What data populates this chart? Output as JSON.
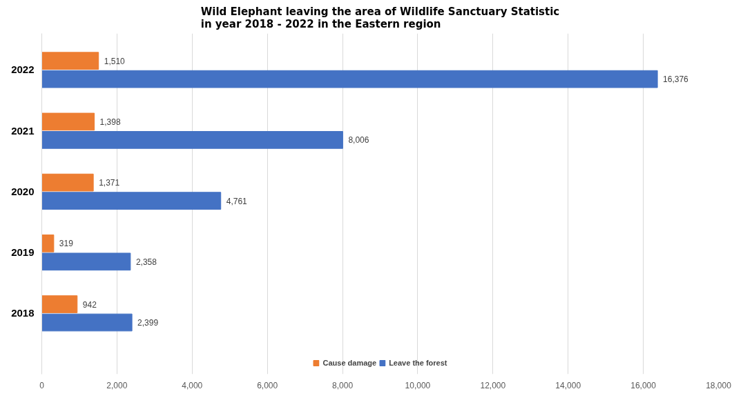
{
  "chart_data": {
    "type": "bar",
    "orientation": "horizontal",
    "title": "Wild Elephant leaving the area of Wildlife Sanctuary Statistic\nin year 2018 - 2022 in the Eastern region",
    "categories": [
      "2022",
      "2021",
      "2020",
      "2019",
      "2018"
    ],
    "series": [
      {
        "name": "Cause damage",
        "color": "#ed7d31",
        "values": [
          1510,
          1398,
          1371,
          319,
          942
        ],
        "value_labels": [
          "1,510",
          "1,398",
          "1,371",
          "319",
          "942"
        ]
      },
      {
        "name": "Leave the forest",
        "color": "#4472c4",
        "values": [
          16376,
          8006,
          4761,
          2358,
          2399
        ],
        "value_labels": [
          "16,376",
          "8,006",
          "4,761",
          "2,358",
          "2,399"
        ]
      }
    ],
    "xlim": [
      0,
      18000
    ],
    "xticks": [
      0,
      {
        "value": 2000,
        "label": "2,000"
      },
      {
        "value": 4000,
        "label": "4,000"
      },
      {
        "value": 6000,
        "label": "6,000"
      },
      {
        "value": 8000,
        "label": "8,000"
      },
      {
        "value": 10000,
        "label": "10,000"
      },
      {
        "value": 12000,
        "label": "12,000"
      },
      {
        "value": 14000,
        "label": "14,000"
      },
      {
        "value": 16000,
        "label": "16,000"
      },
      {
        "value": 18000,
        "label": "18,000"
      }
    ],
    "grid": "x",
    "legend": "bottom"
  }
}
